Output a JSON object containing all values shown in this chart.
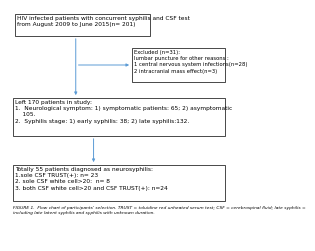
{
  "title_box": "HIV infected patients with concurrent syphilis and CSF test\nfrom August 2009 to June 2015(n= 201)",
  "exclude_box": "Excluded (n=31):\nlumbar puncture for other reasons :\n1 central nervous system infections(n=28)\n2 intracranial mass effect(n=3)",
  "study_box": "Left 170 patients in study:\n1.  Neurological symptom: 1) symptomatic patients: 65; 2) asymptomatic\n    105.\n2.  Syphilis stage: 1) early syphilis: 38; 2) late syphilis:132.",
  "outcome_box": "Totally 55 patients diagnosed as neurosyphilis:\n1.sole CSF TRUST(+): n= 23\n2. sole CSF white cell>20:  n= 8\n3. both CSF white cell>20 and CSF TRUST(+): n=24",
  "caption": "FIGURE 1.  Flow chart of participants' selection. TRUST = toluidine red unheated serum test; CSF = cerebrospinal fluid; late syphilis =\nincluding late latent syphilis and syphilis with unknown duration.",
  "box_color": "#ffffff",
  "border_color": "#000000",
  "arrow_color": "#5B9BD5",
  "text_color": "#000000",
  "bg_color": "#ffffff",
  "font_size": 4.2,
  "caption_font_size": 3.2
}
